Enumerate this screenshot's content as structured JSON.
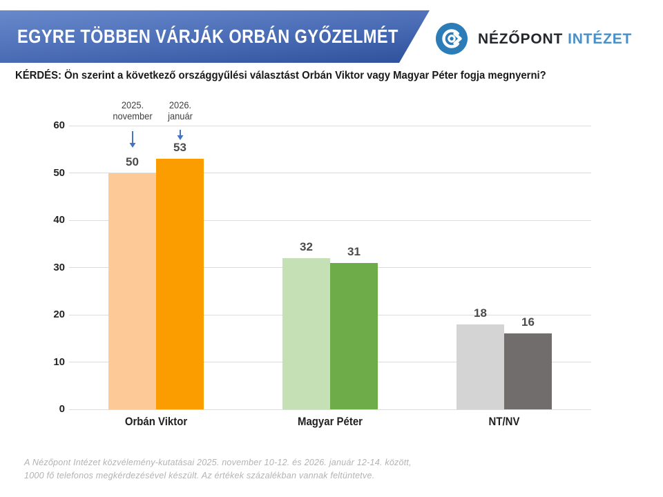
{
  "banner": {
    "title": "EGYRE TÖBBEN VÁRJÁK ORBÁN GYŐZELMÉT",
    "gradient_top": "#6889cb",
    "gradient_bottom": "#2e4f9b"
  },
  "logo": {
    "name_primary": "NÉZŐPONT",
    "name_secondary": "INTÉZET",
    "circle_color": "#2c7cb8",
    "primary_color": "#23272b",
    "secondary_color": "#4a8fc8"
  },
  "question": "KÉRDÉS: Ön szerint a következő országgyűlési választást Orbán Viktor vagy Magyar Péter fogja megnyerni?",
  "chart_data": {
    "type": "bar",
    "categories": [
      "Orbán Viktor",
      "Magyar Péter",
      "NT/NV"
    ],
    "series": [
      {
        "name": "2025. november",
        "values": [
          50,
          32,
          18
        ],
        "colors": [
          "#fcc997",
          "#c5e0b4",
          "#d4d4d4"
        ]
      },
      {
        "name": "2026. január",
        "values": [
          53,
          31,
          16
        ],
        "colors": [
          "#fb9d00",
          "#6eac49",
          "#716d6d"
        ]
      }
    ],
    "ylim": [
      0,
      60
    ],
    "yticks": [
      0,
      10,
      20,
      30,
      40,
      50,
      60
    ],
    "grid": true,
    "gridline_color": "#dcdcdc",
    "value_labels": true,
    "value_label_color": "#4b4b4b",
    "legend_position": "above-first-category",
    "annotated_category_index": 0,
    "annotation_arrow_color": "#4472c4"
  },
  "footer": {
    "line1": "A Nézőpont Intézet közvélemény-kutatásai 2025. november 10-12. és 2026. január 12-14. között,",
    "line2": "1000 fő telefonos megkérdezésével készült. Az értékek százalékban vannak feltüntetve."
  }
}
